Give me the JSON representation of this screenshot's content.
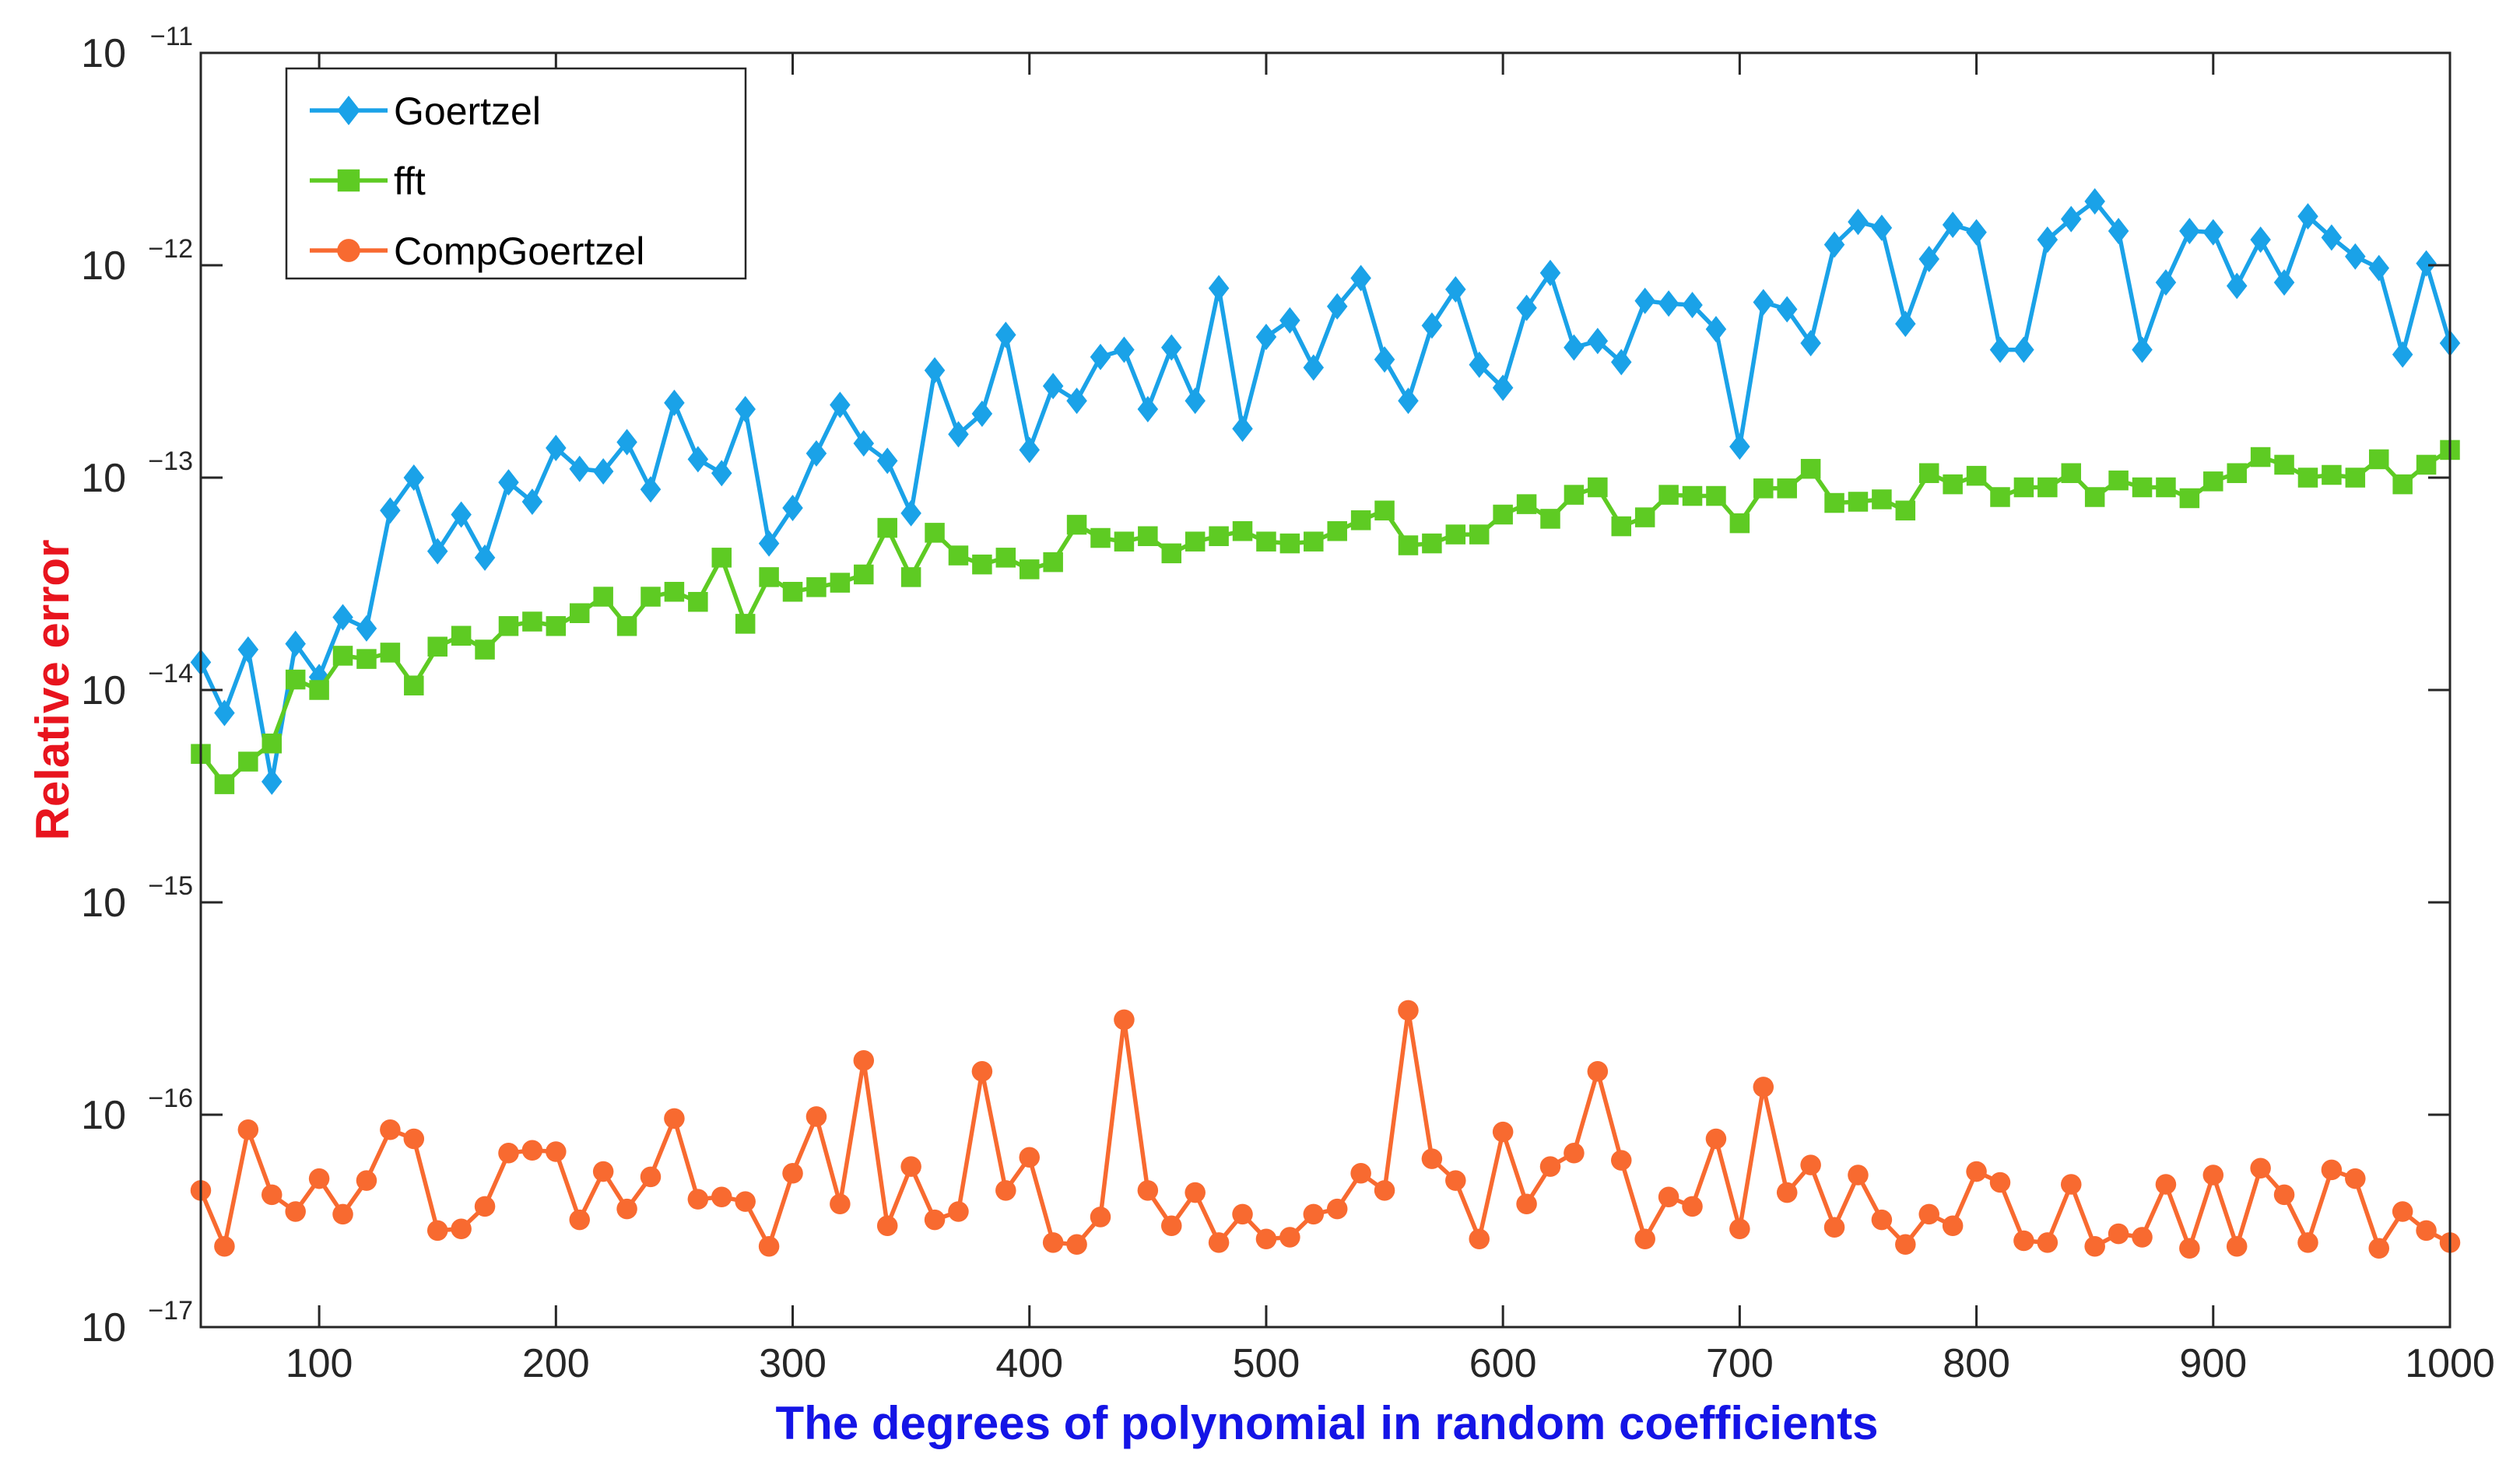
{
  "chart_data": {
    "type": "line",
    "title": "",
    "xlabel": "The degrees of polynomial in random coefficients",
    "ylabel": "Relative error",
    "xlabel_color": "#1414e6",
    "ylabel_color": "#e8141e",
    "xlim": [
      50,
      1000
    ],
    "ylim": [
      1e-17,
      1e-11
    ],
    "yscale": "log",
    "grid": false,
    "legend_position": "top-left",
    "x_ticks": [
      100,
      200,
      300,
      400,
      500,
      600,
      700,
      800,
      900,
      1000
    ],
    "y_ticks": [
      {
        "base": "10",
        "exp": "−17",
        "value": 1e-17
      },
      {
        "base": "10",
        "exp": "−16",
        "value": 1e-16
      },
      {
        "base": "10",
        "exp": "−15",
        "value": 1e-15
      },
      {
        "base": "10",
        "exp": "−14",
        "value": 1e-14
      },
      {
        "base": "10",
        "exp": "−13",
        "value": 1e-13
      },
      {
        "base": "10",
        "exp": "−12",
        "value": 1e-12
      },
      {
        "base": "10",
        "exp": "−11",
        "value": 1e-11
      }
    ],
    "x": [
      50,
      60,
      70,
      80,
      90,
      100,
      110,
      120,
      130,
      140,
      150,
      160,
      170,
      180,
      190,
      200,
      210,
      220,
      230,
      240,
      250,
      260,
      270,
      280,
      290,
      300,
      310,
      320,
      330,
      340,
      350,
      360,
      370,
      380,
      390,
      400,
      410,
      420,
      430,
      440,
      450,
      460,
      470,
      480,
      490,
      500,
      510,
      520,
      530,
      540,
      550,
      560,
      570,
      580,
      590,
      600,
      610,
      620,
      630,
      640,
      650,
      660,
      670,
      680,
      690,
      700,
      710,
      720,
      730,
      740,
      750,
      760,
      770,
      780,
      790,
      800,
      810,
      820,
      830,
      840,
      850,
      860,
      870,
      880,
      890,
      900,
      910,
      920,
      930,
      940,
      950,
      960,
      970,
      980,
      990,
      1000
    ],
    "series": [
      {
        "name": "Goertzel",
        "color": "#1aa2e8",
        "marker": "diamond",
        "values": [
          1.35e-14,
          7.8e-15,
          1.55e-14,
          3.7e-15,
          1.65e-14,
          1.15e-14,
          2.2e-14,
          1.95e-14,
          7e-14,
          1e-13,
          4.5e-14,
          6.7e-14,
          4.2e-14,
          9.5e-14,
          7.7e-14,
          1.38e-13,
          1.1e-13,
          1.07e-13,
          1.47e-13,
          8.8e-14,
          2.25e-13,
          1.22e-13,
          1.05e-13,
          2.1e-13,
          4.9e-14,
          7.2e-14,
          1.3e-13,
          2.2e-13,
          1.45e-13,
          1.2e-13,
          6.8e-14,
          3.2e-13,
          1.6e-13,
          2e-13,
          4.7e-13,
          1.35e-13,
          2.7e-13,
          2.3e-13,
          3.7e-13,
          4e-13,
          2.1e-13,
          4.1e-13,
          2.3e-13,
          7.8e-13,
          1.7e-13,
          4.6e-13,
          5.5e-13,
          3.3e-13,
          6.4e-13,
          8.7e-13,
          3.6e-13,
          2.3e-13,
          5.2e-13,
          7.7e-13,
          3.4e-13,
          2.65e-13,
          6.3e-13,
          9.2e-13,
          4.1e-13,
          4.4e-13,
          3.5e-13,
          6.8e-13,
          6.6e-13,
          6.5e-13,
          5e-13,
          1.4e-13,
          6.7e-13,
          6.2e-13,
          4.3e-13,
          1.25e-12,
          1.6e-12,
          1.5e-12,
          5.3e-13,
          1.07e-12,
          1.55e-12,
          1.43e-12,
          4e-13,
          4e-13,
          1.32e-12,
          1.65e-12,
          2e-12,
          1.45e-12,
          4e-13,
          8.3e-13,
          1.45e-12,
          1.43e-12,
          8e-13,
          1.32e-12,
          8.3e-13,
          1.7e-12,
          1.35e-12,
          1.1e-12,
          9.7e-13,
          3.8e-13,
          1.02e-12,
          4.3e-13
        ]
      },
      {
        "name": "fft",
        "color": "#5ecb23",
        "marker": "square",
        "values": [
          5e-15,
          3.6e-15,
          4.6e-15,
          5.6e-15,
          1.12e-14,
          1e-14,
          1.45e-14,
          1.4e-14,
          1.5e-14,
          1.05e-14,
          1.6e-14,
          1.8e-14,
          1.55e-14,
          2e-14,
          2.1e-14,
          2e-14,
          2.3e-14,
          2.75e-14,
          2e-14,
          2.75e-14,
          2.9e-14,
          2.6e-14,
          4.2e-14,
          2.05e-14,
          3.4e-14,
          2.9e-14,
          3.05e-14,
          3.2e-14,
          3.5e-14,
          5.8e-14,
          3.4e-14,
          5.5e-14,
          4.3e-14,
          3.9e-14,
          4.2e-14,
          3.7e-14,
          4e-14,
          6e-14,
          5.2e-14,
          5e-14,
          5.3e-14,
          4.4e-14,
          5e-14,
          5.3e-14,
          5.6e-14,
          5e-14,
          4.9e-14,
          5e-14,
          5.6e-14,
          6.3e-14,
          7e-14,
          4.8e-14,
          4.9e-14,
          5.4e-14,
          5.4e-14,
          6.7e-14,
          7.5e-14,
          6.4e-14,
          8.3e-14,
          9e-14,
          5.9e-14,
          6.5e-14,
          8.3e-14,
          8.2e-14,
          8.2e-14,
          6.1e-14,
          8.9e-14,
          8.9e-14,
          1.1e-13,
          7.6e-14,
          7.7e-14,
          7.9e-14,
          7e-14,
          1.05e-13,
          9.3e-14,
          1.02e-13,
          8.1e-14,
          9e-14,
          9e-14,
          1.05e-13,
          8.1e-14,
          9.7e-14,
          9e-14,
          9e-14,
          8e-14,
          9.6e-14,
          1.05e-13,
          1.25e-13,
          1.15e-13,
          1e-13,
          1.03e-13,
          1e-13,
          1.22e-13,
          9.3e-14,
          1.15e-13,
          1.35e-13
        ]
      },
      {
        "name": "CompGoertzel",
        "color": "#f86a30",
        "marker": "circle",
        "values": [
          4.4e-17,
          2.4e-17,
          8.5e-17,
          4.2e-17,
          3.5e-17,
          5e-17,
          3.4e-17,
          4.9e-17,
          8.5e-17,
          7.7e-17,
          2.85e-17,
          2.9e-17,
          3.7e-17,
          6.6e-17,
          6.8e-17,
          6.7e-17,
          3.2e-17,
          5.4e-17,
          3.6e-17,
          5.1e-17,
          9.6e-17,
          4e-17,
          4.1e-17,
          3.9e-17,
          2.4e-17,
          5.3e-17,
          9.8e-17,
          3.8e-17,
          1.8e-16,
          3e-17,
          5.7e-17,
          3.2e-17,
          3.5e-17,
          1.6e-16,
          4.4e-17,
          6.3e-17,
          2.5e-17,
          2.45e-17,
          3.3e-17,
          2.8e-16,
          4.4e-17,
          3e-17,
          4.3e-17,
          2.5e-17,
          3.4e-17,
          2.6e-17,
          2.65e-17,
          3.4e-17,
          3.6e-17,
          5.3e-17,
          4.4e-17,
          3.1e-16,
          6.2e-17,
          4.9e-17,
          2.6e-17,
          8.3e-17,
          3.8e-17,
          5.7e-17,
          6.6e-17,
          1.6e-16,
          6.1e-17,
          2.6e-17,
          4.1e-17,
          3.7e-17,
          7.7e-17,
          2.9e-17,
          1.35e-16,
          4.3e-17,
          5.8e-17,
          2.95e-17,
          5.2e-17,
          3.2e-17,
          2.45e-17,
          3.4e-17,
          3e-17,
          5.4e-17,
          4.8e-17,
          2.55e-17,
          2.5e-17,
          4.7e-17,
          2.4e-17,
          2.75e-17,
          2.65e-17,
          4.7e-17,
          2.35e-17,
          5.2e-17,
          2.4e-17,
          5.6e-17,
          4.2e-17,
          2.5e-17,
          5.5e-17,
          5e-17,
          2.35e-17,
          3.5e-17,
          2.85e-17,
          2.5e-17
        ]
      }
    ]
  }
}
